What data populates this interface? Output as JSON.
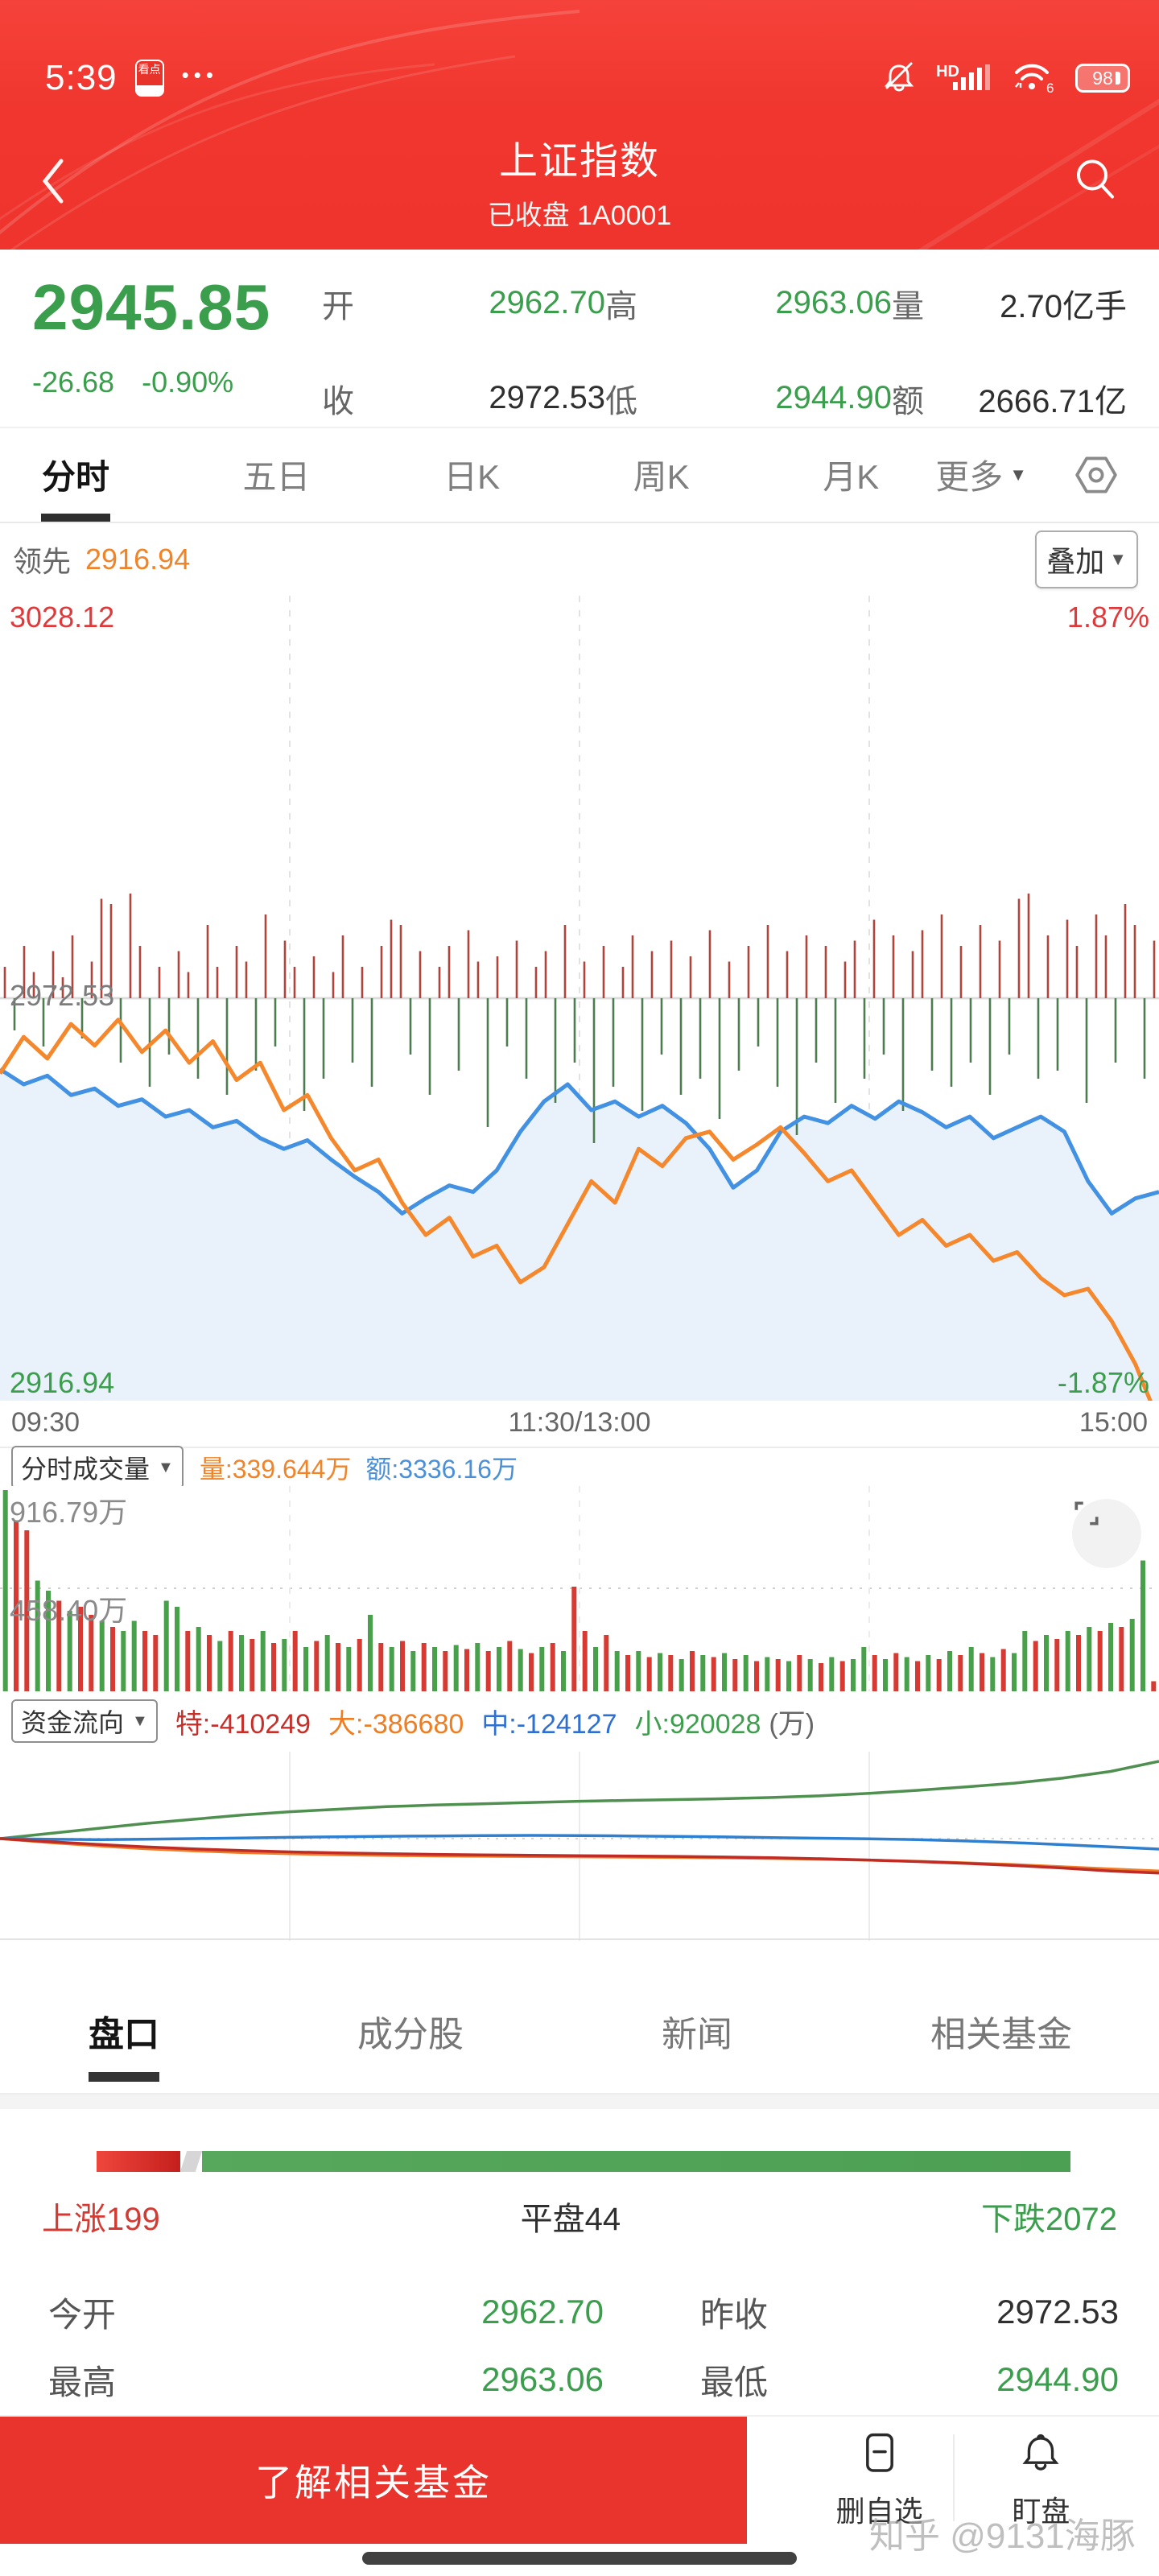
{
  "status_bar": {
    "time": "5:39",
    "app_badge": "看点",
    "dots": "•••",
    "hd": "HD",
    "wifi_label": "6",
    "battery": "98"
  },
  "header": {
    "title": "上证指数",
    "subtitle": "已收盘 1A0001"
  },
  "quote": {
    "price": "2945.85",
    "change": "-26.68",
    "change_pct": "-0.90%",
    "stats": [
      {
        "label": "开",
        "value": "2962.70",
        "color": "green"
      },
      {
        "label": "高",
        "value": "2963.06",
        "color": "green"
      },
      {
        "label": "量",
        "value": "2.70亿手",
        "color": "dark"
      },
      {
        "label": "收",
        "value": "2972.53",
        "color": "dark"
      },
      {
        "label": "低",
        "value": "2944.90",
        "color": "green"
      },
      {
        "label": "额",
        "value": "2666.71亿",
        "color": "dark"
      }
    ]
  },
  "period_tabs": {
    "items": [
      "分时",
      "五日",
      "日K",
      "周K",
      "月K"
    ],
    "active_index": 0,
    "more_label": "更多"
  },
  "leading": {
    "label": "领先",
    "value": "2916.94",
    "overlay_button": "叠加"
  },
  "intraday_labels": {
    "top_value": "3028.12",
    "top_pct": "1.87%",
    "mid": "2972.53",
    "bottom_value": "2916.94",
    "bottom_pct": "-1.87%",
    "x_ticks": [
      "09:30",
      "11:30/13:00",
      "15:00"
    ]
  },
  "volume_pane": {
    "selector": "分时成交量",
    "vol": "量:339.644万",
    "amt": "额:3336.16万",
    "y_max": "916.79万",
    "y_mid": "458.40万"
  },
  "money_flow": {
    "selector": "资金流向",
    "items": [
      {
        "label": "特:",
        "value": "-410249",
        "color": "#c62f2a"
      },
      {
        "label": "大:",
        "value": "-386680",
        "color": "#ef7d22"
      },
      {
        "label": "中:",
        "value": "-124127",
        "color": "#2f6fd0"
      },
      {
        "label": "小:",
        "value": "920028",
        "color": "#3f9e4e"
      }
    ],
    "unit": "(万)"
  },
  "section_tabs": {
    "items": [
      "盘口",
      "成分股",
      "新闻",
      "相关基金"
    ],
    "active_index": 0
  },
  "breadth": {
    "up": "上涨199",
    "flat": "平盘44",
    "down": "下跌2072",
    "up_count": 199,
    "flat_count": 44,
    "down_count": 2072
  },
  "info_rows": [
    {
      "label": "今开",
      "value": "2962.70",
      "color": "#3a9e4c"
    },
    {
      "label": "昨收",
      "value": "2972.53",
      "color": "#2f2f2f"
    },
    {
      "label": "最高",
      "value": "2963.06",
      "color": "#3a9e4c"
    },
    {
      "label": "最低",
      "value": "2944.90",
      "color": "#3a9e4c"
    }
  ],
  "bottom_bar": {
    "cta": "了解相关基金",
    "delete_watchlist": "删自选",
    "watch": "盯盘"
  },
  "watermark": "知乎 @9131海豚",
  "chart_data": [
    {
      "id": "intraday",
      "type": "line",
      "title": "上证指数 分时",
      "x_axis": [
        "09:30",
        "11:30/13:00",
        "15:00"
      ],
      "y_axis": {
        "top": 3028.12,
        "mid": 2972.53,
        "bottom": 2916.94,
        "top_pct": 1.87,
        "bottom_pct": -1.87
      },
      "close_price": 2945.85,
      "prev_close": 2972.53,
      "series": [
        {
          "name": "指数",
          "color": "#4291e2",
          "values_pct": [
            -0.33,
            -0.4,
            -0.36,
            -0.45,
            -0.42,
            -0.5,
            -0.47,
            -0.55,
            -0.52,
            -0.6,
            -0.57,
            -0.65,
            -0.7,
            -0.66,
            -0.75,
            -0.83,
            -0.9,
            -1.0,
            -0.93,
            -0.87,
            -0.9,
            -0.8,
            -0.62,
            -0.48,
            -0.4,
            -0.52,
            -0.48,
            -0.55,
            -0.5,
            -0.58,
            -0.7,
            -0.88,
            -0.8,
            -0.62,
            -0.55,
            -0.58,
            -0.5,
            -0.56,
            -0.48,
            -0.53,
            -0.6,
            -0.55,
            -0.65,
            -0.6,
            -0.55,
            -0.62,
            -0.85,
            -1.0,
            -0.93,
            -0.9
          ]
        },
        {
          "name": "领先",
          "color": "#f5882d",
          "values_pct": [
            -0.35,
            -0.18,
            -0.28,
            -0.12,
            -0.22,
            -0.1,
            -0.25,
            -0.15,
            -0.3,
            -0.2,
            -0.38,
            -0.3,
            -0.52,
            -0.45,
            -0.65,
            -0.8,
            -0.75,
            -0.95,
            -1.1,
            -1.02,
            -1.2,
            -1.15,
            -1.32,
            -1.25,
            -1.05,
            -0.85,
            -0.95,
            -0.7,
            -0.78,
            -0.65,
            -0.62,
            -0.75,
            -0.68,
            -0.6,
            -0.72,
            -0.85,
            -0.8,
            -0.95,
            -1.1,
            -1.03,
            -1.15,
            -1.1,
            -1.22,
            -1.18,
            -1.3,
            -1.38,
            -1.35,
            -1.5,
            -1.7,
            -1.97
          ]
        }
      ],
      "minute_ticks": [
        0.3,
        -0.2,
        0.5,
        0.25,
        -0.3,
        0.45,
        0.2,
        0.6,
        -0.25,
        0.35,
        0.95,
        0.9,
        -0.4,
        1.0,
        0.5,
        -0.55,
        0.3,
        -0.35,
        0.45,
        0.25,
        -0.5,
        0.7,
        0.3,
        -0.6,
        0.5,
        0.35,
        -0.45,
        0.8,
        -0.3,
        0.55,
        0.3,
        -0.7,
        0.4,
        -0.5,
        0.25,
        0.6,
        -0.4,
        0.3,
        -0.55,
        0.5,
        0.75,
        0.7,
        -0.35,
        0.45,
        -0.6,
        0.3,
        0.5,
        -0.45,
        0.65,
        0.35,
        -0.8,
        0.4,
        -0.3,
        0.55,
        -0.5,
        0.3,
        0.45,
        -0.65,
        0.7,
        -0.4,
        0.35,
        -0.9,
        0.5,
        -0.55,
        0.3,
        0.6,
        -0.7,
        0.45,
        -0.35,
        0.55,
        -0.6,
        0.4,
        -0.5,
        0.65,
        -0.75,
        0.35,
        -0.45,
        0.5,
        -0.3,
        0.7,
        -0.55,
        0.45,
        -0.85,
        0.6,
        -0.4,
        0.5,
        -0.65,
        0.35,
        0.55,
        -0.5,
        0.75,
        -0.35,
        0.6,
        -0.7,
        0.45,
        0.65,
        -0.45,
        0.8,
        -0.55,
        0.5,
        -0.4,
        0.7,
        -0.6,
        0.55,
        -0.35,
        0.95,
        1.0,
        -0.5,
        0.6,
        -0.45,
        0.75,
        0.5,
        -0.65,
        0.8,
        0.6,
        -0.4,
        0.9,
        0.7,
        -0.5,
        0.55
      ],
      "tick_colors": {
        "up": "#b0443d",
        "down": "#4c7d4f"
      },
      "fill_color": "#e9f1fa"
    },
    {
      "id": "volume",
      "type": "bar",
      "unit": "万",
      "y_max": 916.79,
      "y_mid": 458.4,
      "total_volume": "339.644万",
      "total_amount": "3336.16万",
      "values": [
        1.0,
        0.85,
        0.8,
        0.55,
        0.5,
        0.45,
        0.4,
        0.42,
        0.38,
        0.35,
        0.32,
        0.3,
        0.35,
        0.3,
        0.28,
        0.45,
        0.42,
        0.3,
        0.32,
        0.28,
        0.25,
        0.3,
        0.28,
        0.26,
        0.3,
        0.24,
        0.26,
        0.3,
        0.22,
        0.25,
        0.28,
        0.24,
        0.22,
        0.26,
        0.38,
        0.24,
        0.22,
        0.25,
        0.2,
        0.24,
        0.22,
        0.2,
        0.23,
        0.21,
        0.24,
        0.2,
        0.22,
        0.25,
        0.21,
        0.19,
        0.22,
        0.24,
        0.2,
        0.52,
        0.3,
        0.22,
        0.28,
        0.2,
        0.18,
        0.2,
        0.17,
        0.19,
        0.18,
        0.16,
        0.2,
        0.18,
        0.17,
        0.19,
        0.16,
        0.18,
        0.15,
        0.17,
        0.16,
        0.15,
        0.18,
        0.16,
        0.14,
        0.17,
        0.15,
        0.16,
        0.22,
        0.18,
        0.16,
        0.19,
        0.17,
        0.15,
        0.18,
        0.16,
        0.2,
        0.18,
        0.22,
        0.19,
        0.17,
        0.21,
        0.19,
        0.3,
        0.25,
        0.28,
        0.26,
        0.3,
        0.28,
        0.32,
        0.3,
        0.34,
        0.32,
        0.36,
        0.65,
        0.05
      ],
      "colors": "grrggrgrrgrggrrggrgrgrgrgrgrgrgrgrgrgrgrgrgrgrgrgrgrgrrgrgrgrgrgrgrgrgrgrgrgrgrggrgrgrgrgrgrgrggrgrgrgrgrggr",
      "bar_colors": {
        "g": "#48a04a",
        "r": "#d63a32"
      }
    },
    {
      "id": "moneyflow",
      "type": "line",
      "unit": "万",
      "legend": [
        "特",
        "大",
        "中",
        "小"
      ],
      "end_values": {
        "特": -410249,
        "大": -386680,
        "中": -124127,
        "小": 920028
      },
      "series": [
        {
          "name": "小",
          "color": "#4f8f4f",
          "values": [
            0,
            60000,
            120000,
            180000,
            230000,
            280000,
            320000,
            350000,
            380000,
            400000,
            415000,
            430000,
            445000,
            455000,
            465000,
            475000,
            490000,
            510000,
            540000,
            575000,
            615000,
            660000,
            720000,
            800000,
            920028
          ]
        },
        {
          "name": "中",
          "color": "#2f7fd0",
          "values": [
            0,
            -8000,
            -12000,
            -8000,
            0,
            8000,
            15000,
            22000,
            28000,
            32000,
            36000,
            38000,
            36000,
            32000,
            26000,
            20000,
            12000,
            5000,
            -2000,
            -12000,
            -28000,
            -48000,
            -72000,
            -98000,
            -124127
          ]
        },
        {
          "name": "大",
          "color": "#ef7d28",
          "values": [
            0,
            -45000,
            -85000,
            -120000,
            -145000,
            -165000,
            -180000,
            -192000,
            -200000,
            -206000,
            -210000,
            -214000,
            -217000,
            -220000,
            -224000,
            -229000,
            -236000,
            -245000,
            -256000,
            -270000,
            -288000,
            -310000,
            -335000,
            -362000,
            -386680
          ]
        },
        {
          "name": "特",
          "color": "#bf2c26",
          "values": [
            0,
            -35000,
            -68000,
            -98000,
            -122000,
            -142000,
            -158000,
            -170000,
            -180000,
            -188000,
            -194000,
            -199000,
            -203000,
            -207000,
            -212000,
            -219000,
            -228000,
            -240000,
            -255000,
            -273000,
            -295000,
            -320000,
            -350000,
            -385000,
            -410249
          ]
        }
      ]
    }
  ]
}
